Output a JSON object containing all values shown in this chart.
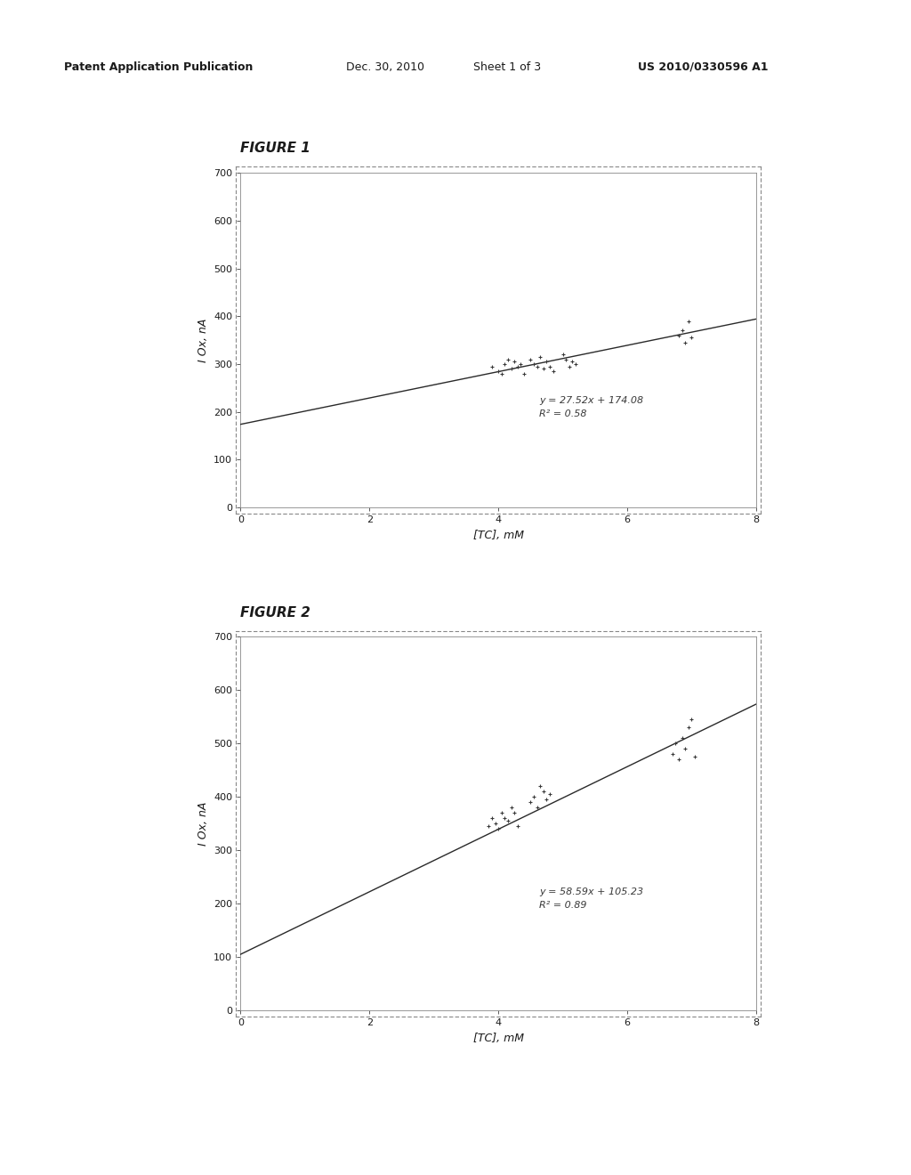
{
  "page_bg": "#ffffff",
  "plot_bg": "#ffffff",
  "header_text": "Patent Application Publication",
  "header_date": "Dec. 30, 2010",
  "header_sheet": "Sheet 1 of 3",
  "header_patent": "US 2010/0330596 A1",
  "figure1_label": "FIGURE 1",
  "figure2_label": "FIGURE 2",
  "xlabel": "[TC], mM",
  "ylabel": "I Ox, nA",
  "fig1": {
    "slope": 27.52,
    "intercept": 174.08,
    "r2": 0.58,
    "equation": "y = 27.52x + 174.08",
    "r2_text": "R² = 0.58",
    "xlim": [
      0,
      8
    ],
    "ylim": [
      0,
      700
    ],
    "xticks": [
      0,
      2,
      4,
      6,
      8
    ],
    "yticks": [
      0,
      100,
      200,
      300,
      400,
      500,
      600,
      700
    ],
    "scatter_x": [
      3.9,
      4.0,
      4.05,
      4.1,
      4.15,
      4.2,
      4.25,
      4.3,
      4.35,
      4.4,
      4.5,
      4.55,
      4.6,
      4.65,
      4.7,
      4.75,
      4.8,
      4.85,
      5.0,
      5.05,
      5.1,
      5.15,
      5.2,
      6.8,
      6.85,
      6.9,
      6.95,
      7.0
    ],
    "scatter_y": [
      295,
      285,
      280,
      300,
      310,
      290,
      305,
      295,
      300,
      280,
      310,
      300,
      295,
      315,
      290,
      305,
      295,
      285,
      320,
      310,
      295,
      305,
      300,
      360,
      370,
      345,
      390,
      355
    ]
  },
  "fig2": {
    "slope": 58.59,
    "intercept": 105.23,
    "r2": 0.89,
    "equation": "y = 58.59x + 105.23",
    "r2_text": "R² = 0.89",
    "xlim": [
      0,
      8
    ],
    "ylim": [
      0,
      700
    ],
    "xticks": [
      0,
      2,
      4,
      6,
      8
    ],
    "yticks": [
      0,
      100,
      200,
      300,
      400,
      500,
      600,
      700
    ],
    "scatter_x": [
      3.85,
      3.9,
      3.95,
      4.0,
      4.05,
      4.1,
      4.15,
      4.2,
      4.25,
      4.3,
      4.5,
      4.55,
      4.6,
      4.65,
      4.7,
      4.75,
      4.8,
      6.7,
      6.75,
      6.8,
      6.85,
      6.9,
      6.95,
      7.0,
      7.05
    ],
    "scatter_y": [
      345,
      360,
      350,
      340,
      370,
      360,
      355,
      380,
      370,
      345,
      390,
      400,
      380,
      420,
      410,
      395,
      405,
      480,
      500,
      470,
      510,
      490,
      530,
      545,
      475
    ]
  },
  "line_color": "#2a2a2a",
  "scatter_color": "#3a3a3a",
  "border_color": "#888888",
  "text_color": "#1a1a1a",
  "annotation_color": "#3a3a3a",
  "header_line_color": "#333333"
}
